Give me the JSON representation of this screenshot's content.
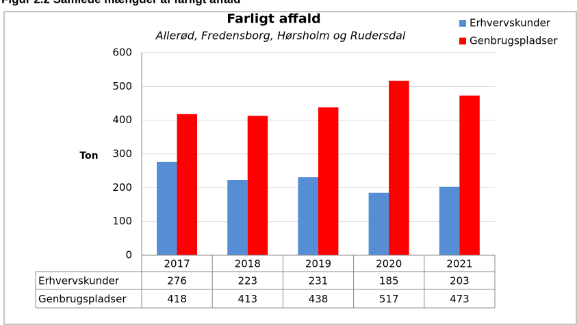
{
  "header": "Figur 2.2 Samlede mængder af farligt affald",
  "chart_data": {
    "type": "bar",
    "title": "Farligt affald",
    "subtitle": "Allerød, Fredensborg, Hørsholm og Rudersdal",
    "ylabel": "Ton",
    "categories": [
      "2017",
      "2018",
      "2019",
      "2020",
      "2021"
    ],
    "series": [
      {
        "name": "Erhvervskunder",
        "color": "#558ed5",
        "values": [
          276,
          223,
          231,
          185,
          203
        ]
      },
      {
        "name": "Genbrugspladser",
        "color": "#ff0000",
        "values": [
          418,
          413,
          438,
          517,
          473
        ]
      }
    ],
    "ylim": [
      0,
      600
    ],
    "yticks": [
      0,
      100,
      200,
      300,
      400,
      500,
      600
    ],
    "grid": true,
    "legend": "top-right",
    "data_table": true
  }
}
